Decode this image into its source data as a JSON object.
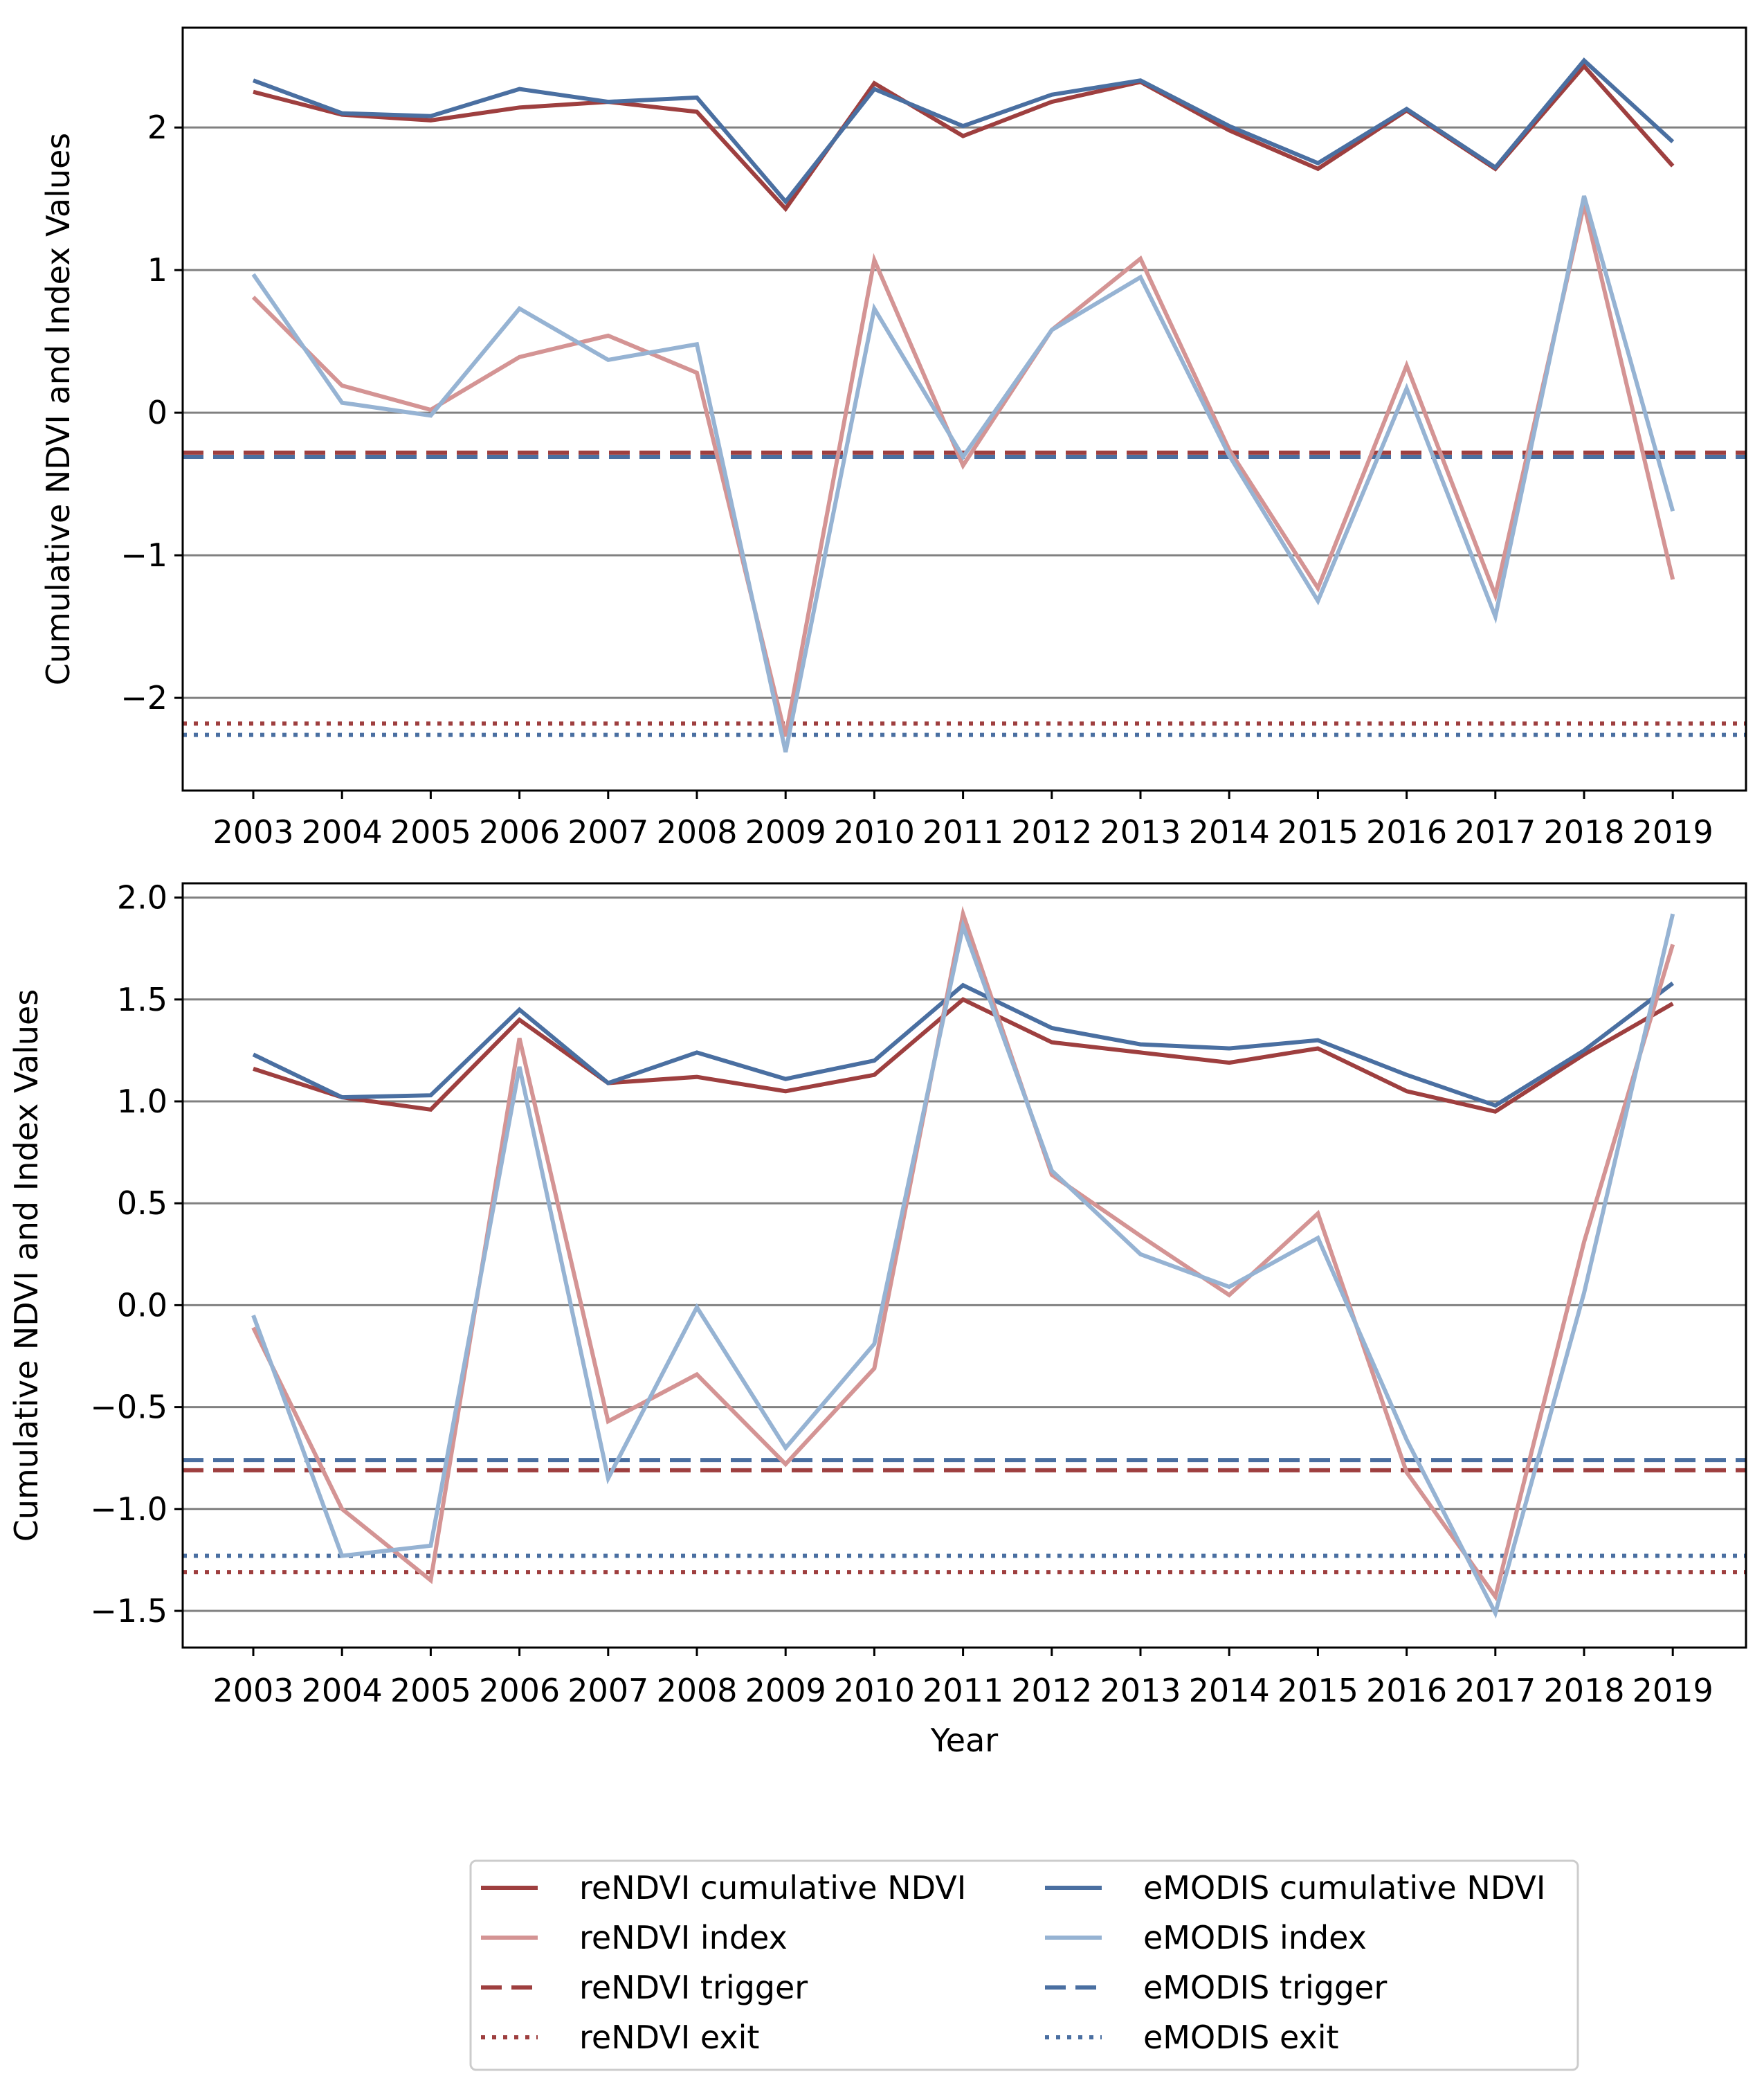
{
  "colors": {
    "renddvi_cum": "#9e3f3f",
    "renddvi_idx": "#d49494",
    "emodis_cum": "#4a6fa1",
    "emodis_idx": "#96b3d3",
    "grid": "#808080"
  },
  "legend": {
    "items": [
      {
        "label": "reNDVI cumulative NDVI",
        "color": "#9e3f3f",
        "style": "solid"
      },
      {
        "label": "eMODIS cumulative NDVI",
        "color": "#4a6fa1",
        "style": "solid"
      },
      {
        "label": "reNDVI index",
        "color": "#d49494",
        "style": "solid"
      },
      {
        "label": "eMODIS index",
        "color": "#96b3d3",
        "style": "solid"
      },
      {
        "label": "reNDVI trigger",
        "color": "#9e3f3f",
        "style": "dashed"
      },
      {
        "label": "eMODIS trigger",
        "color": "#4a6fa1",
        "style": "dashed"
      },
      {
        "label": "reNDVI exit",
        "color": "#9e3f3f",
        "style": "dotted"
      },
      {
        "label": "eMODIS exit",
        "color": "#4a6fa1",
        "style": "dotted"
      }
    ]
  },
  "chart_data": [
    {
      "type": "line",
      "ylabel": "Cumulative NDVI and Index Values",
      "xlabel": "",
      "categories": [
        "2003",
        "2004",
        "2005",
        "2006",
        "2007",
        "2008",
        "2009",
        "2010",
        "2011",
        "2012",
        "2013",
        "2014",
        "2015",
        "2016",
        "2017",
        "2018",
        "2019"
      ],
      "ylim": [
        -2.65,
        2.7
      ],
      "yticks": [
        2,
        1,
        0,
        -1,
        -2
      ],
      "ytick_labels": [
        "2",
        "1",
        "0",
        "−1",
        "−2"
      ],
      "grid": true,
      "series": [
        {
          "name": "reNDVI cumulative NDVI",
          "color": "#9e3f3f",
          "style": "solid",
          "values": [
            2.25,
            2.09,
            2.05,
            2.14,
            2.18,
            2.11,
            1.43,
            2.31,
            1.94,
            2.18,
            2.32,
            1.98,
            1.71,
            2.12,
            1.71,
            2.43,
            1.73
          ]
        },
        {
          "name": "eMODIS cumulative NDVI",
          "color": "#4a6fa1",
          "style": "solid",
          "values": [
            2.33,
            2.1,
            2.08,
            2.27,
            2.18,
            2.21,
            1.48,
            2.27,
            2.01,
            2.23,
            2.33,
            2.01,
            1.75,
            2.13,
            1.72,
            2.47,
            1.9
          ]
        },
        {
          "name": "reNDVI index",
          "color": "#d49494",
          "style": "solid",
          "values": [
            0.81,
            0.19,
            0.02,
            0.39,
            0.54,
            0.28,
            -2.27,
            1.07,
            -0.37,
            0.58,
            1.08,
            -0.26,
            -1.23,
            0.33,
            -1.28,
            1.46,
            -1.17
          ]
        },
        {
          "name": "eMODIS index",
          "color": "#96b3d3",
          "style": "solid",
          "values": [
            0.97,
            0.07,
            -0.02,
            0.73,
            0.37,
            0.48,
            -2.38,
            0.73,
            -0.31,
            0.58,
            0.95,
            -0.3,
            -1.32,
            0.17,
            -1.43,
            1.52,
            -0.69
          ]
        }
      ],
      "hlines": [
        {
          "name": "reNDVI trigger",
          "color": "#9e3f3f",
          "style": "dashed",
          "value": -0.28
        },
        {
          "name": "eMODIS trigger",
          "color": "#4a6fa1",
          "style": "dashed",
          "value": -0.31
        },
        {
          "name": "reNDVI exit",
          "color": "#9e3f3f",
          "style": "dotted",
          "value": -2.18
        },
        {
          "name": "eMODIS exit",
          "color": "#4a6fa1",
          "style": "dotted",
          "value": -2.26
        }
      ]
    },
    {
      "type": "line",
      "ylabel": "Cumulative NDVI and Index Values",
      "xlabel": "Year",
      "categories": [
        "2003",
        "2004",
        "2005",
        "2006",
        "2007",
        "2008",
        "2009",
        "2010",
        "2011",
        "2012",
        "2013",
        "2014",
        "2015",
        "2016",
        "2017",
        "2018",
        "2019"
      ],
      "ylim": [
        -1.68,
        2.07
      ],
      "yticks": [
        2.0,
        1.5,
        1.0,
        0.5,
        0.0,
        -0.5,
        -1.0,
        -1.5
      ],
      "ytick_labels": [
        "2.0",
        "1.5",
        "1.0",
        "0.5",
        "0.0",
        "−0.5",
        "−1.0",
        "−1.5"
      ],
      "grid": true,
      "series": [
        {
          "name": "reNDVI cumulative NDVI",
          "color": "#9e3f3f",
          "style": "solid",
          "values": [
            1.16,
            1.02,
            0.96,
            1.4,
            1.09,
            1.12,
            1.05,
            1.13,
            1.5,
            1.29,
            1.24,
            1.19,
            1.26,
            1.05,
            0.95,
            1.23,
            1.48
          ]
        },
        {
          "name": "eMODIS cumulative NDVI",
          "color": "#4a6fa1",
          "style": "solid",
          "values": [
            1.23,
            1.02,
            1.03,
            1.45,
            1.09,
            1.24,
            1.11,
            1.2,
            1.57,
            1.36,
            1.28,
            1.26,
            1.3,
            1.13,
            0.98,
            1.25,
            1.58
          ]
        },
        {
          "name": "reNDVI index",
          "color": "#d49494",
          "style": "solid",
          "values": [
            -0.11,
            -1.0,
            -1.35,
            1.31,
            -0.57,
            -0.34,
            -0.78,
            -0.31,
            1.92,
            0.64,
            0.34,
            0.05,
            0.45,
            -0.82,
            -1.43,
            0.31,
            1.77
          ]
        },
        {
          "name": "eMODIS index",
          "color": "#96b3d3",
          "style": "solid",
          "values": [
            -0.05,
            -1.23,
            -1.18,
            1.17,
            -0.85,
            -0.01,
            -0.7,
            -0.19,
            1.86,
            0.66,
            0.25,
            0.09,
            0.33,
            -0.66,
            -1.51,
            0.06,
            1.92
          ]
        }
      ],
      "hlines": [
        {
          "name": "reNDVI trigger",
          "color": "#9e3f3f",
          "style": "dashed",
          "value": -0.81
        },
        {
          "name": "eMODIS trigger",
          "color": "#4a6fa1",
          "style": "dashed",
          "value": -0.76
        },
        {
          "name": "reNDVI exit",
          "color": "#9e3f3f",
          "style": "dotted",
          "value": -1.31
        },
        {
          "name": "eMODIS exit",
          "color": "#4a6fa1",
          "style": "dotted",
          "value": -1.23
        }
      ]
    }
  ]
}
